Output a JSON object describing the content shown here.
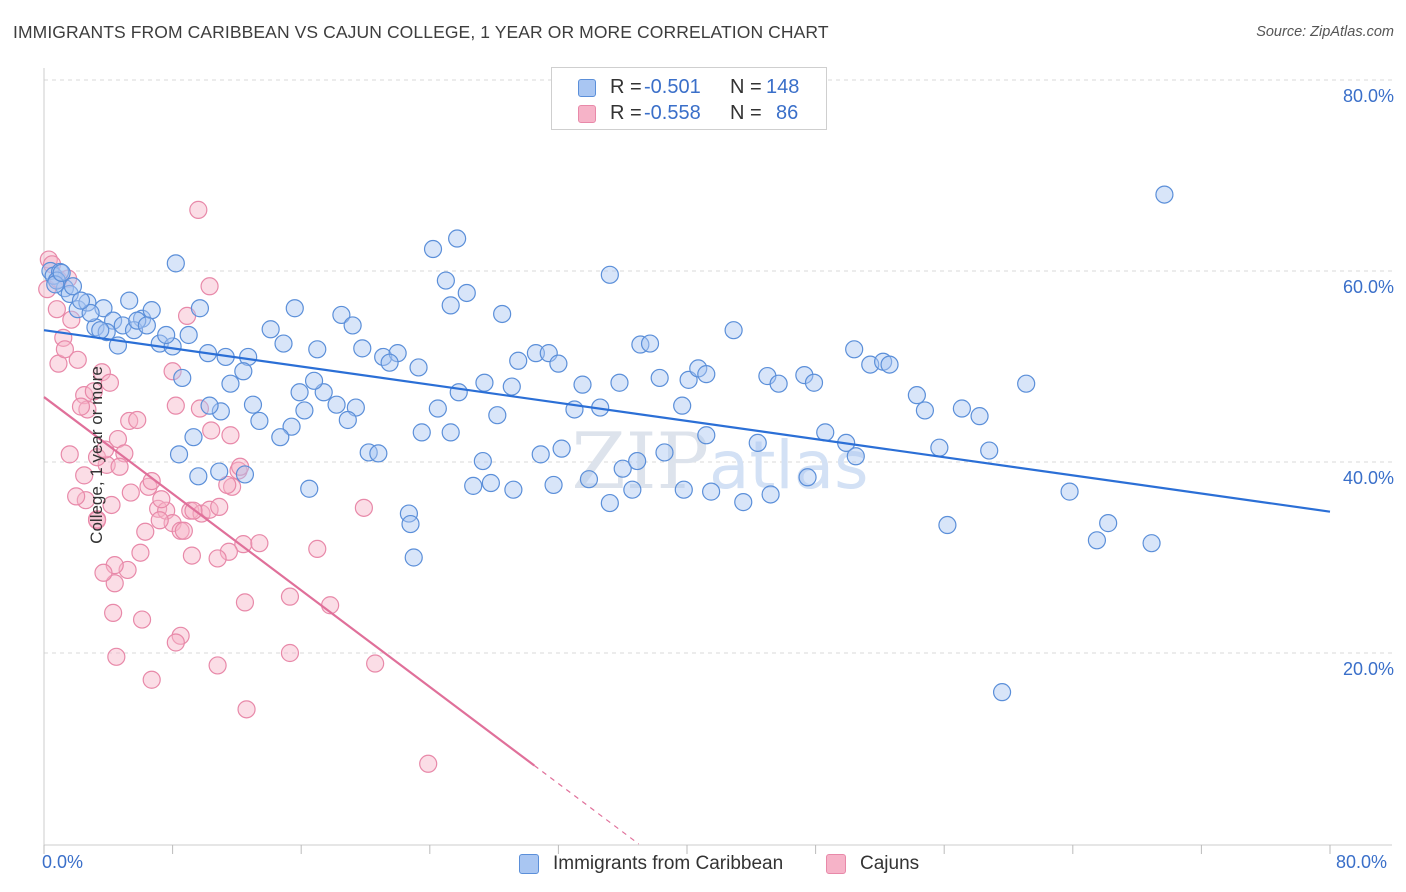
{
  "title": "IMMIGRANTS FROM CARIBBEAN VS CAJUN COLLEGE, 1 YEAR OR MORE CORRELATION CHART",
  "source": "Source: ZipAtlas.com",
  "watermark": "ZIPatlas",
  "colors": {
    "blue_fill": "#a9c6f2",
    "blue_stroke": "#5b8fd9",
    "blue_line": "#2b6fd6",
    "pink_fill": "#f6b3c8",
    "pink_stroke": "#e889a9",
    "pink_line": "#e0709a",
    "axis_text": "#3a6fc9",
    "grid": "#d9d9d9"
  },
  "legend_top": {
    "rows": [
      {
        "r_label": "R =",
        "r_value": "-0.501",
        "n_label": "N =",
        "n_value": "148",
        "series": "blue"
      },
      {
        "r_label": "R =",
        "r_value": "-0.558",
        "n_label": "N =",
        "n_value": "86",
        "series": "pink"
      }
    ]
  },
  "chart_data": {
    "type": "scatter",
    "title": "IMMIGRANTS FROM CARIBBEAN VS CAJUN COLLEGE, 1 YEAR OR MORE CORRELATION CHART",
    "xlabel": "",
    "ylabel": "College, 1 year or more",
    "xlim": [
      0,
      80
    ],
    "ylim": [
      0,
      80
    ],
    "x_ticks": [
      "0.0%",
      "80.0%"
    ],
    "y_ticks": [
      "20.0%",
      "40.0%",
      "60.0%",
      "80.0%"
    ],
    "grid": true,
    "legend_position": "bottom",
    "series": [
      {
        "name": "Immigrants from Caribbean",
        "color": "blue",
        "trend": {
          "x": [
            0,
            80
          ],
          "y": [
            53.8,
            34.8
          ],
          "solid_to": 80
        },
        "points": [
          [
            0.4,
            60.0
          ],
          [
            0.6,
            59.5
          ],
          [
            1.0,
            59.9
          ],
          [
            1.3,
            58.2
          ],
          [
            0.8,
            59.0
          ],
          [
            1.6,
            57.6
          ],
          [
            2.1,
            56.0
          ],
          [
            2.7,
            56.7
          ],
          [
            3.2,
            54.1
          ],
          [
            3.7,
            56.1
          ],
          [
            2.9,
            55.6
          ],
          [
            4.3,
            54.8
          ],
          [
            4.9,
            54.3
          ],
          [
            5.3,
            56.9
          ],
          [
            6.1,
            55.0
          ],
          [
            6.7,
            55.9
          ],
          [
            3.9,
            53.6
          ],
          [
            4.6,
            52.2
          ],
          [
            5.6,
            53.8
          ],
          [
            7.2,
            52.4
          ],
          [
            8.0,
            52.1
          ],
          [
            8.2,
            60.8
          ],
          [
            9.0,
            53.3
          ],
          [
            9.7,
            56.1
          ],
          [
            10.2,
            51.4
          ],
          [
            11.3,
            51.0
          ],
          [
            12.7,
            51.0
          ],
          [
            14.1,
            53.9
          ],
          [
            14.9,
            52.4
          ],
          [
            15.6,
            56.1
          ],
          [
            17.0,
            51.8
          ],
          [
            18.5,
            55.4
          ],
          [
            19.2,
            54.3
          ],
          [
            19.8,
            51.9
          ],
          [
            21.1,
            51.0
          ],
          [
            22.0,
            51.4
          ],
          [
            21.5,
            50.4
          ],
          [
            23.3,
            49.9
          ],
          [
            24.2,
            62.3
          ],
          [
            25.0,
            59.0
          ],
          [
            25.3,
            56.4
          ],
          [
            25.7,
            63.4
          ],
          [
            26.3,
            57.7
          ],
          [
            27.4,
            48.3
          ],
          [
            28.5,
            55.5
          ],
          [
            29.1,
            47.9
          ],
          [
            30.6,
            51.4
          ],
          [
            31.4,
            51.4
          ],
          [
            32.0,
            50.3
          ],
          [
            33.0,
            45.5
          ],
          [
            34.6,
            45.7
          ],
          [
            35.8,
            48.3
          ],
          [
            37.1,
            52.3
          ],
          [
            37.7,
            52.4
          ],
          [
            38.3,
            48.8
          ],
          [
            39.7,
            45.9
          ],
          [
            40.1,
            48.6
          ],
          [
            40.7,
            49.8
          ],
          [
            41.2,
            49.2
          ],
          [
            42.9,
            53.8
          ],
          [
            45.0,
            49.0
          ],
          [
            45.7,
            48.2
          ],
          [
            47.3,
            49.1
          ],
          [
            47.9,
            48.3
          ],
          [
            50.4,
            51.8
          ],
          [
            51.4,
            50.2
          ],
          [
            52.2,
            50.5
          ],
          [
            54.3,
            47.0
          ],
          [
            54.8,
            45.4
          ],
          [
            57.1,
            45.6
          ],
          [
            58.2,
            44.8
          ],
          [
            61.1,
            48.2
          ],
          [
            63.8,
            36.9
          ],
          [
            65.5,
            31.8
          ],
          [
            66.2,
            33.6
          ],
          [
            68.9,
            31.5
          ],
          [
            69.7,
            68.0
          ],
          [
            56.2,
            33.4
          ],
          [
            58.8,
            41.2
          ],
          [
            48.6,
            43.1
          ],
          [
            49.9,
            42.0
          ],
          [
            41.2,
            42.8
          ],
          [
            36.6,
            37.1
          ],
          [
            35.2,
            35.7
          ],
          [
            32.2,
            41.4
          ],
          [
            31.7,
            37.6
          ],
          [
            30.9,
            40.8
          ],
          [
            28.2,
            44.9
          ],
          [
            27.3,
            40.1
          ],
          [
            26.7,
            37.5
          ],
          [
            24.5,
            45.6
          ],
          [
            23.5,
            43.1
          ],
          [
            22.7,
            34.6
          ],
          [
            22.8,
            33.5
          ],
          [
            20.2,
            41.0
          ],
          [
            19.4,
            45.7
          ],
          [
            18.9,
            44.4
          ],
          [
            18.2,
            46.0
          ],
          [
            17.4,
            47.3
          ],
          [
            16.8,
            48.5
          ],
          [
            16.2,
            45.4
          ],
          [
            15.4,
            43.7
          ],
          [
            14.7,
            42.6
          ],
          [
            13.4,
            44.3
          ],
          [
            12.4,
            49.5
          ],
          [
            11.6,
            48.2
          ],
          [
            11.0,
            45.3
          ],
          [
            10.3,
            45.9
          ],
          [
            9.3,
            42.6
          ],
          [
            8.6,
            48.8
          ],
          [
            8.4,
            40.8
          ],
          [
            9.6,
            38.5
          ],
          [
            10.9,
            39.0
          ],
          [
            12.5,
            38.7
          ],
          [
            16.5,
            37.2
          ],
          [
            20.8,
            40.9
          ],
          [
            23.0,
            30.0
          ],
          [
            27.8,
            37.8
          ],
          [
            29.2,
            37.1
          ],
          [
            33.9,
            38.2
          ],
          [
            36.0,
            39.3
          ],
          [
            36.9,
            40.1
          ],
          [
            39.8,
            37.1
          ],
          [
            41.5,
            36.9
          ],
          [
            43.5,
            35.8
          ],
          [
            45.2,
            36.6
          ],
          [
            47.5,
            38.4
          ],
          [
            50.5,
            40.6
          ],
          [
            55.7,
            41.5
          ],
          [
            59.6,
            15.9
          ],
          [
            0.7,
            58.6
          ],
          [
            1.1,
            59.8
          ],
          [
            1.8,
            58.4
          ],
          [
            2.3,
            56.9
          ],
          [
            3.5,
            53.8
          ],
          [
            5.8,
            54.8
          ],
          [
            6.4,
            54.3
          ],
          [
            7.6,
            53.3
          ],
          [
            13.0,
            46.0
          ],
          [
            15.9,
            47.3
          ],
          [
            25.8,
            47.3
          ],
          [
            33.5,
            48.1
          ],
          [
            38.6,
            41.0
          ],
          [
            44.4,
            42.0
          ],
          [
            52.6,
            50.2
          ],
          [
            35.2,
            59.6
          ],
          [
            29.5,
            50.6
          ],
          [
            25.3,
            43.1
          ]
        ]
      },
      {
        "name": "Cajuns",
        "color": "pink",
        "trend": {
          "x": [
            0,
            37
          ],
          "y": [
            46.8,
            0.0
          ],
          "solid_to": 30.5
        },
        "points": [
          [
            0.3,
            61.2
          ],
          [
            0.5,
            60.7
          ],
          [
            0.2,
            58.1
          ],
          [
            0.9,
            59.1
          ],
          [
            1.5,
            59.2
          ],
          [
            0.8,
            56.0
          ],
          [
            1.2,
            53.0
          ],
          [
            0.9,
            50.3
          ],
          [
            1.7,
            54.9
          ],
          [
            1.3,
            51.8
          ],
          [
            2.1,
            50.7
          ],
          [
            2.5,
            47.0
          ],
          [
            2.7,
            45.5
          ],
          [
            3.6,
            49.4
          ],
          [
            4.1,
            48.3
          ],
          [
            2.3,
            45.8
          ],
          [
            3.1,
            47.4
          ],
          [
            5.3,
            44.3
          ],
          [
            4.6,
            42.4
          ],
          [
            5.0,
            40.9
          ],
          [
            3.9,
            39.7
          ],
          [
            3.3,
            40.5
          ],
          [
            2.5,
            38.6
          ],
          [
            1.6,
            40.8
          ],
          [
            2.6,
            36.0
          ],
          [
            3.3,
            34.0
          ],
          [
            4.2,
            35.5
          ],
          [
            5.4,
            36.8
          ],
          [
            6.5,
            37.4
          ],
          [
            7.1,
            35.1
          ],
          [
            7.6,
            34.9
          ],
          [
            8.0,
            33.6
          ],
          [
            8.5,
            32.8
          ],
          [
            9.1,
            34.9
          ],
          [
            9.8,
            34.6
          ],
          [
            10.3,
            35.0
          ],
          [
            10.9,
            35.3
          ],
          [
            11.7,
            37.4
          ],
          [
            12.1,
            39.1
          ],
          [
            12.4,
            31.4
          ],
          [
            11.5,
            30.6
          ],
          [
            10.8,
            29.9
          ],
          [
            9.2,
            30.2
          ],
          [
            8.7,
            32.8
          ],
          [
            7.2,
            33.9
          ],
          [
            6.3,
            32.7
          ],
          [
            6.0,
            30.5
          ],
          [
            5.2,
            28.7
          ],
          [
            4.4,
            29.2
          ],
          [
            4.4,
            27.3
          ],
          [
            3.7,
            28.4
          ],
          [
            3.3,
            33.9
          ],
          [
            4.3,
            24.2
          ],
          [
            6.1,
            23.5
          ],
          [
            8.5,
            21.8
          ],
          [
            8.2,
            21.1
          ],
          [
            4.5,
            19.6
          ],
          [
            6.7,
            17.2
          ],
          [
            10.8,
            18.7
          ],
          [
            12.6,
            14.1
          ],
          [
            12.5,
            25.3
          ],
          [
            15.3,
            25.9
          ],
          [
            17.8,
            25.0
          ],
          [
            15.3,
            20.0
          ],
          [
            17.0,
            30.9
          ],
          [
            19.9,
            35.2
          ],
          [
            20.6,
            18.9
          ],
          [
            23.9,
            8.4
          ],
          [
            9.6,
            66.4
          ],
          [
            10.3,
            58.4
          ],
          [
            8.9,
            55.3
          ],
          [
            8.0,
            49.5
          ],
          [
            8.2,
            45.9
          ],
          [
            9.7,
            45.6
          ],
          [
            10.4,
            43.3
          ],
          [
            11.6,
            42.8
          ],
          [
            12.2,
            39.5
          ],
          [
            7.3,
            36.1
          ],
          [
            4.7,
            39.5
          ],
          [
            6.7,
            38.0
          ],
          [
            2.0,
            36.4
          ],
          [
            3.8,
            41.3
          ],
          [
            5.8,
            44.4
          ],
          [
            9.3,
            34.9
          ],
          [
            11.4,
            37.6
          ],
          [
            13.4,
            31.5
          ]
        ]
      }
    ]
  }
}
